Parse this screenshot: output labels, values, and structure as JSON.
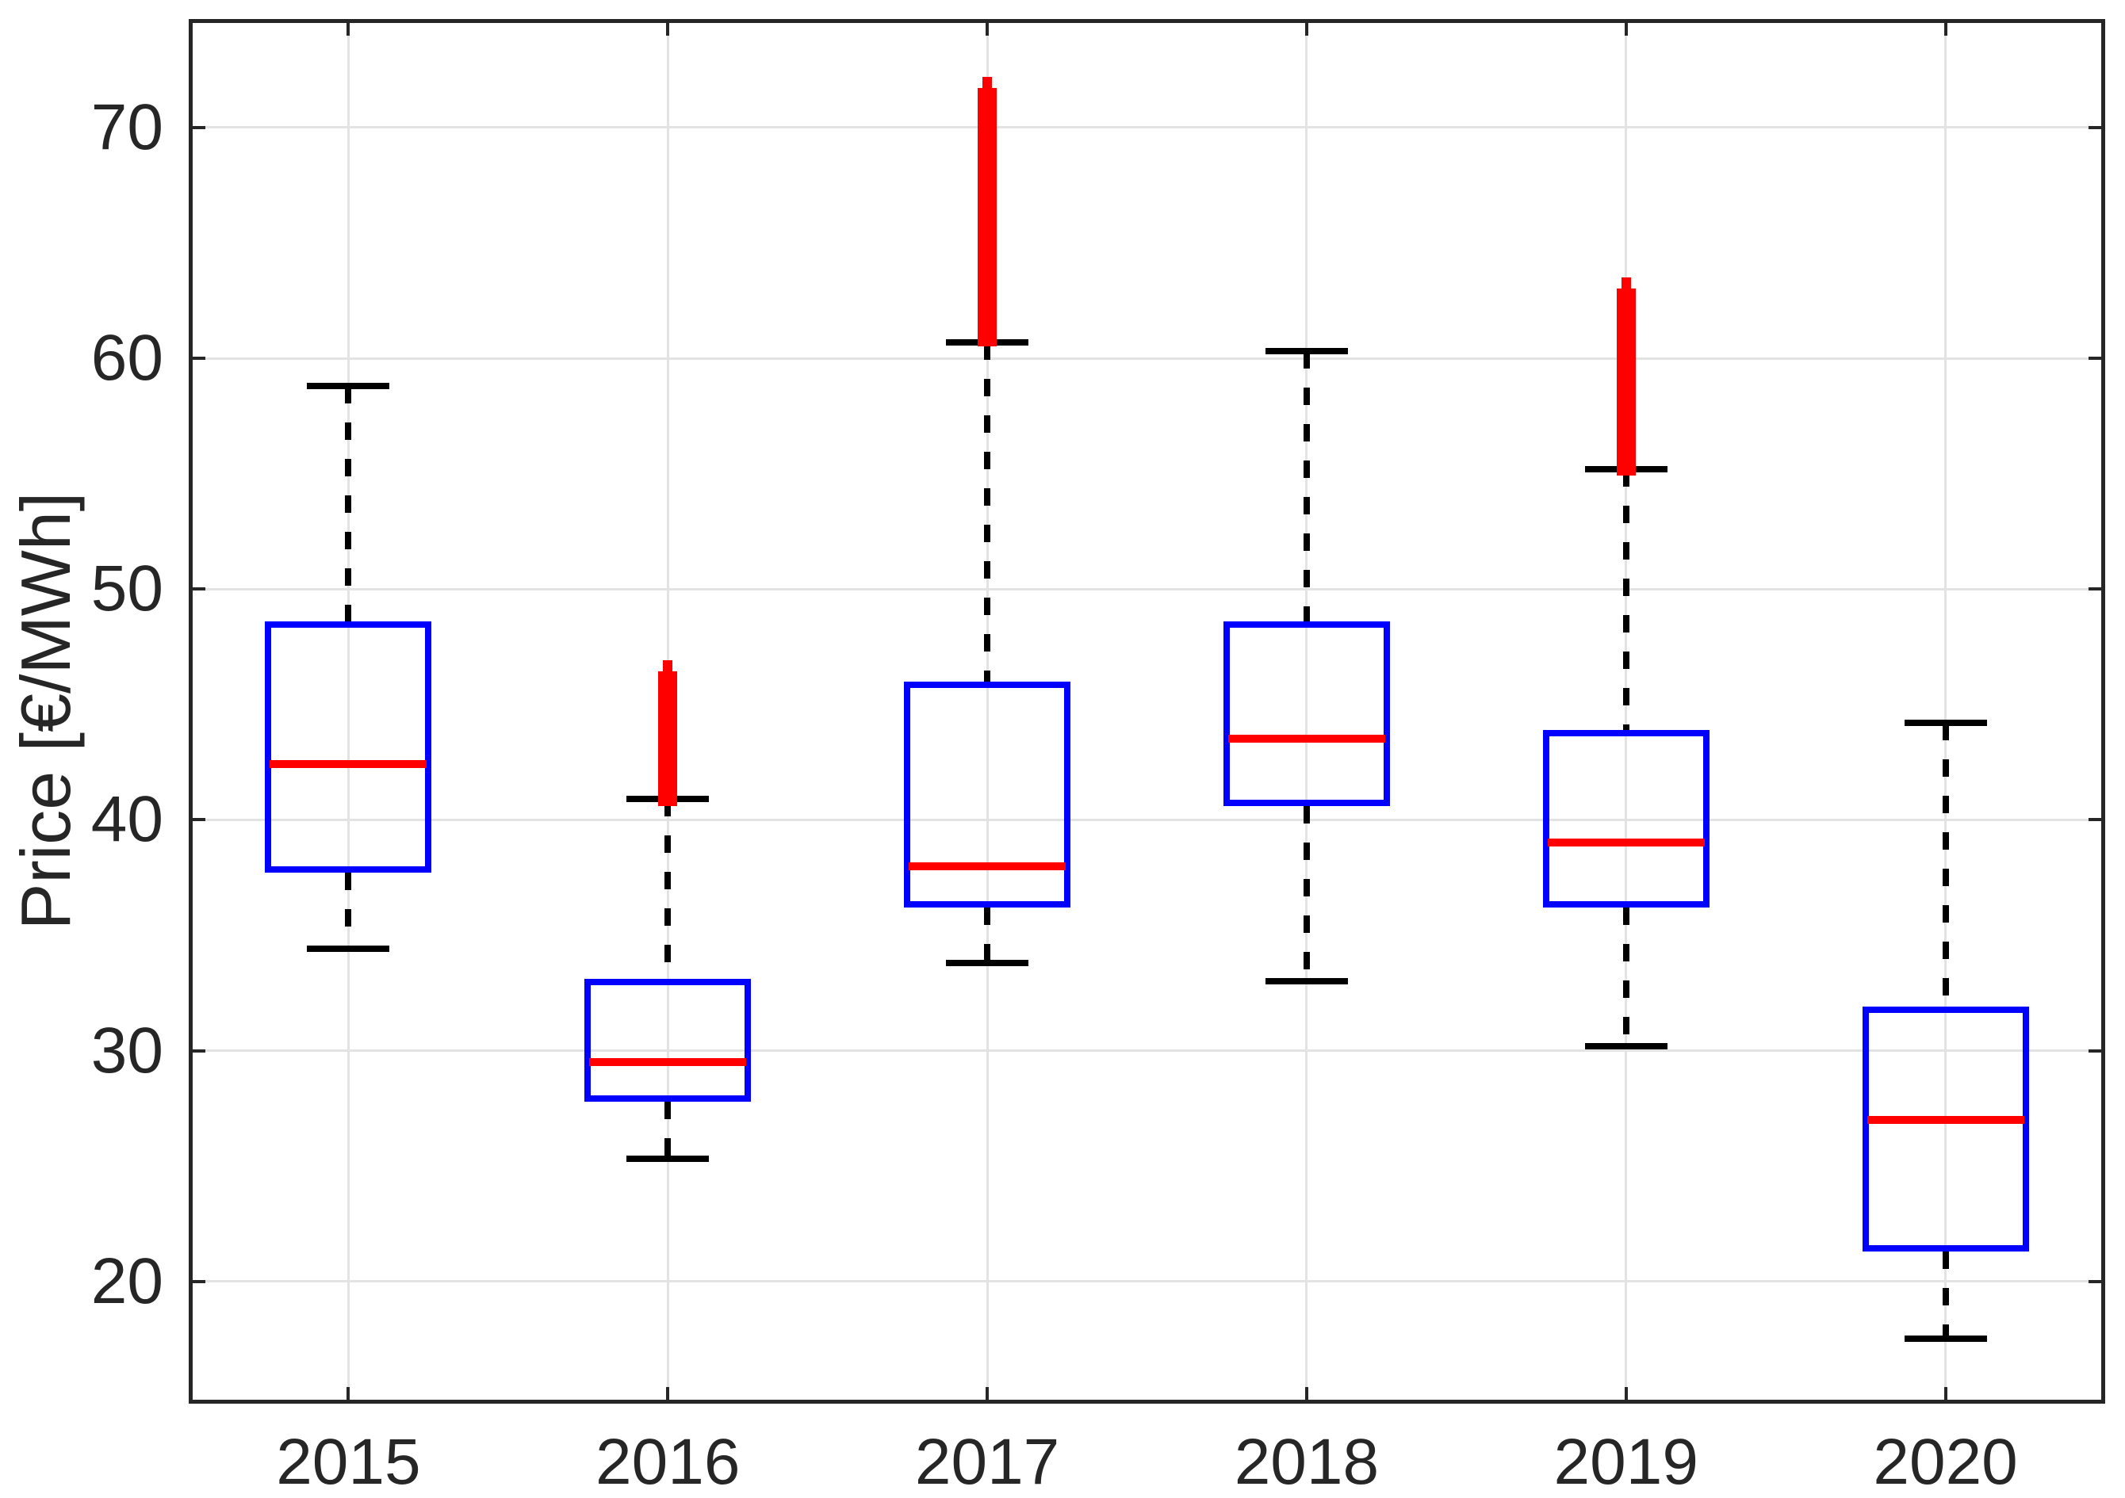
{
  "figure": {
    "title": "",
    "background": "#ffffff"
  },
  "chart_data": {
    "type": "boxplot",
    "title": "",
    "xlabel": "",
    "ylabel": "Price [€/MWh]",
    "categories": [
      "2015",
      "2016",
      "2017",
      "2018",
      "2019",
      "2020"
    ],
    "yticks": [
      20,
      30,
      40,
      50,
      60,
      70
    ],
    "ylim": [
      14.7,
      74.7
    ],
    "grid": true,
    "legend": "none",
    "series": [
      {
        "category": "2015",
        "whisker_low": 34.4,
        "q1": 37.7,
        "median": 42.4,
        "q3": 48.6,
        "whisker_high": 58.8,
        "outliers": null
      },
      {
        "category": "2016",
        "whisker_low": 25.3,
        "q1": 27.8,
        "median": 29.5,
        "q3": 33.1,
        "whisker_high": 40.9,
        "outliers": {
          "min": 40.6,
          "max": 46.9
        }
      },
      {
        "category": "2017",
        "whisker_low": 33.8,
        "q1": 36.2,
        "median": 38.0,
        "q3": 46.0,
        "whisker_high": 60.7,
        "outliers": {
          "min": 60.5,
          "max": 72.2
        }
      },
      {
        "category": "2018",
        "whisker_low": 33.0,
        "q1": 40.6,
        "median": 43.5,
        "q3": 48.6,
        "whisker_high": 60.3,
        "outliers": null
      },
      {
        "category": "2019",
        "whisker_low": 30.2,
        "q1": 36.2,
        "median": 39.0,
        "q3": 43.9,
        "whisker_high": 55.2,
        "outliers": {
          "min": 54.9,
          "max": 63.5
        }
      },
      {
        "category": "2020",
        "whisker_low": 17.5,
        "q1": 21.3,
        "median": 27.0,
        "q3": 31.9,
        "whisker_high": 44.2,
        "outliers": null
      }
    ],
    "style": {
      "box_color": "#0000ff",
      "median_color": "#ff0000",
      "outlier_color": "#ff0000",
      "whisker_color": "#000000",
      "grid_color": "#e3e3e3",
      "axis_color": "#262626",
      "label_color": "#262626"
    }
  }
}
